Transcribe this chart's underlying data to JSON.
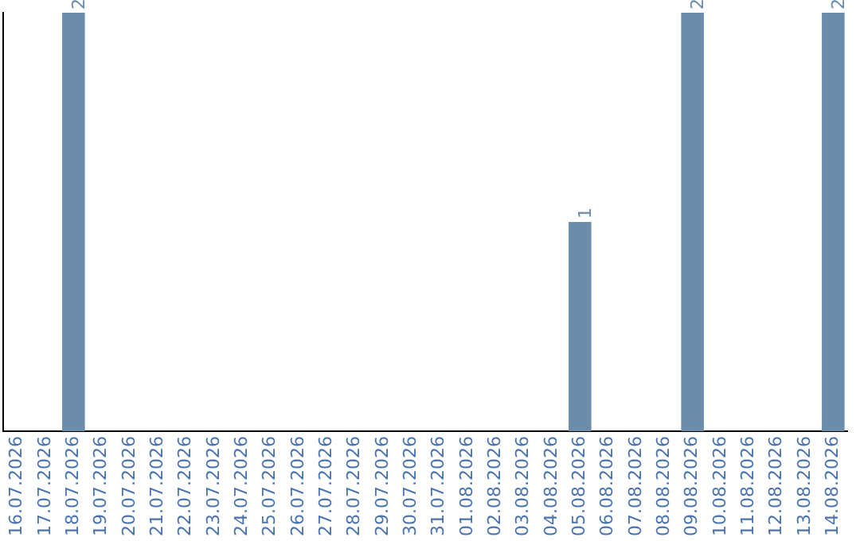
{
  "chart_data": {
    "type": "bar",
    "categories": [
      "16.07.2026",
      "17.07.2026",
      "18.07.2026",
      "19.07.2026",
      "20.07.2026",
      "21.07.2026",
      "22.07.2026",
      "23.07.2026",
      "24.07.2026",
      "25.07.2026",
      "26.07.2026",
      "27.07.2026",
      "28.07.2026",
      "29.07.2026",
      "30.07.2026",
      "31.07.2026",
      "01.08.2026",
      "02.08.2026",
      "03.08.2026",
      "04.08.2026",
      "05.08.2026",
      "06.08.2026",
      "07.08.2026",
      "08.08.2026",
      "09.08.2026",
      "10.08.2026",
      "11.08.2026",
      "12.08.2026",
      "13.08.2026",
      "14.08.2026"
    ],
    "values": [
      0,
      0,
      2,
      0,
      0,
      0,
      0,
      0,
      0,
      0,
      0,
      0,
      0,
      0,
      0,
      0,
      0,
      0,
      0,
      0,
      1,
      0,
      0,
      0,
      2,
      0,
      0,
      0,
      0,
      2
    ],
    "value_labels": [
      null,
      null,
      "2",
      null,
      null,
      null,
      null,
      null,
      null,
      null,
      null,
      null,
      null,
      null,
      null,
      null,
      null,
      null,
      null,
      null,
      "1",
      null,
      null,
      null,
      "2",
      null,
      null,
      null,
      null,
      "2"
    ],
    "color": "#6b8cab",
    "tick_labels": "x",
    "grid": false,
    "legend": false
  }
}
